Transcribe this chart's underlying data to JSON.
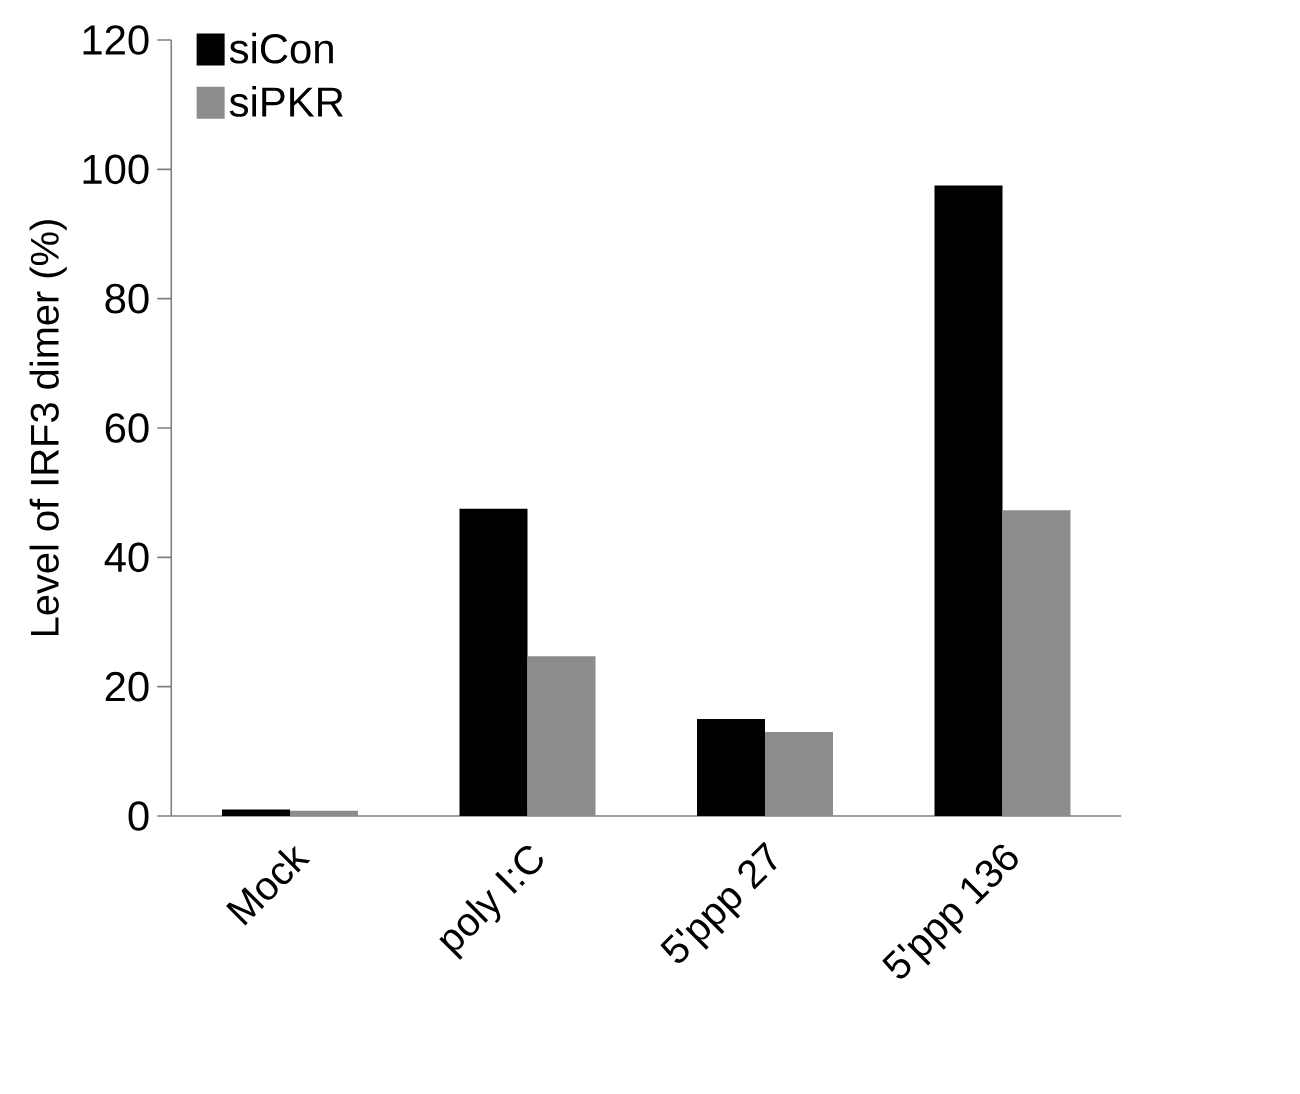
{
  "chart_data": {
    "type": "bar",
    "ylabel": "Level of IRF3 dimer (%)",
    "categories": [
      "Mock",
      "poly I:C",
      "5'ppp 27",
      "5'ppp 136"
    ],
    "series": [
      {
        "name": "siCon",
        "color": "#000000",
        "values": [
          1,
          47.5,
          15,
          97.5
        ]
      },
      {
        "name": "siPKR",
        "color": "#8c8c8c",
        "values": [
          0.8,
          24.7,
          13,
          47.3
        ]
      }
    ],
    "ylim": [
      0,
      120
    ],
    "yticks": [
      0,
      20,
      40,
      60,
      80,
      100,
      120
    ],
    "grid": false,
    "legend": "top left"
  }
}
